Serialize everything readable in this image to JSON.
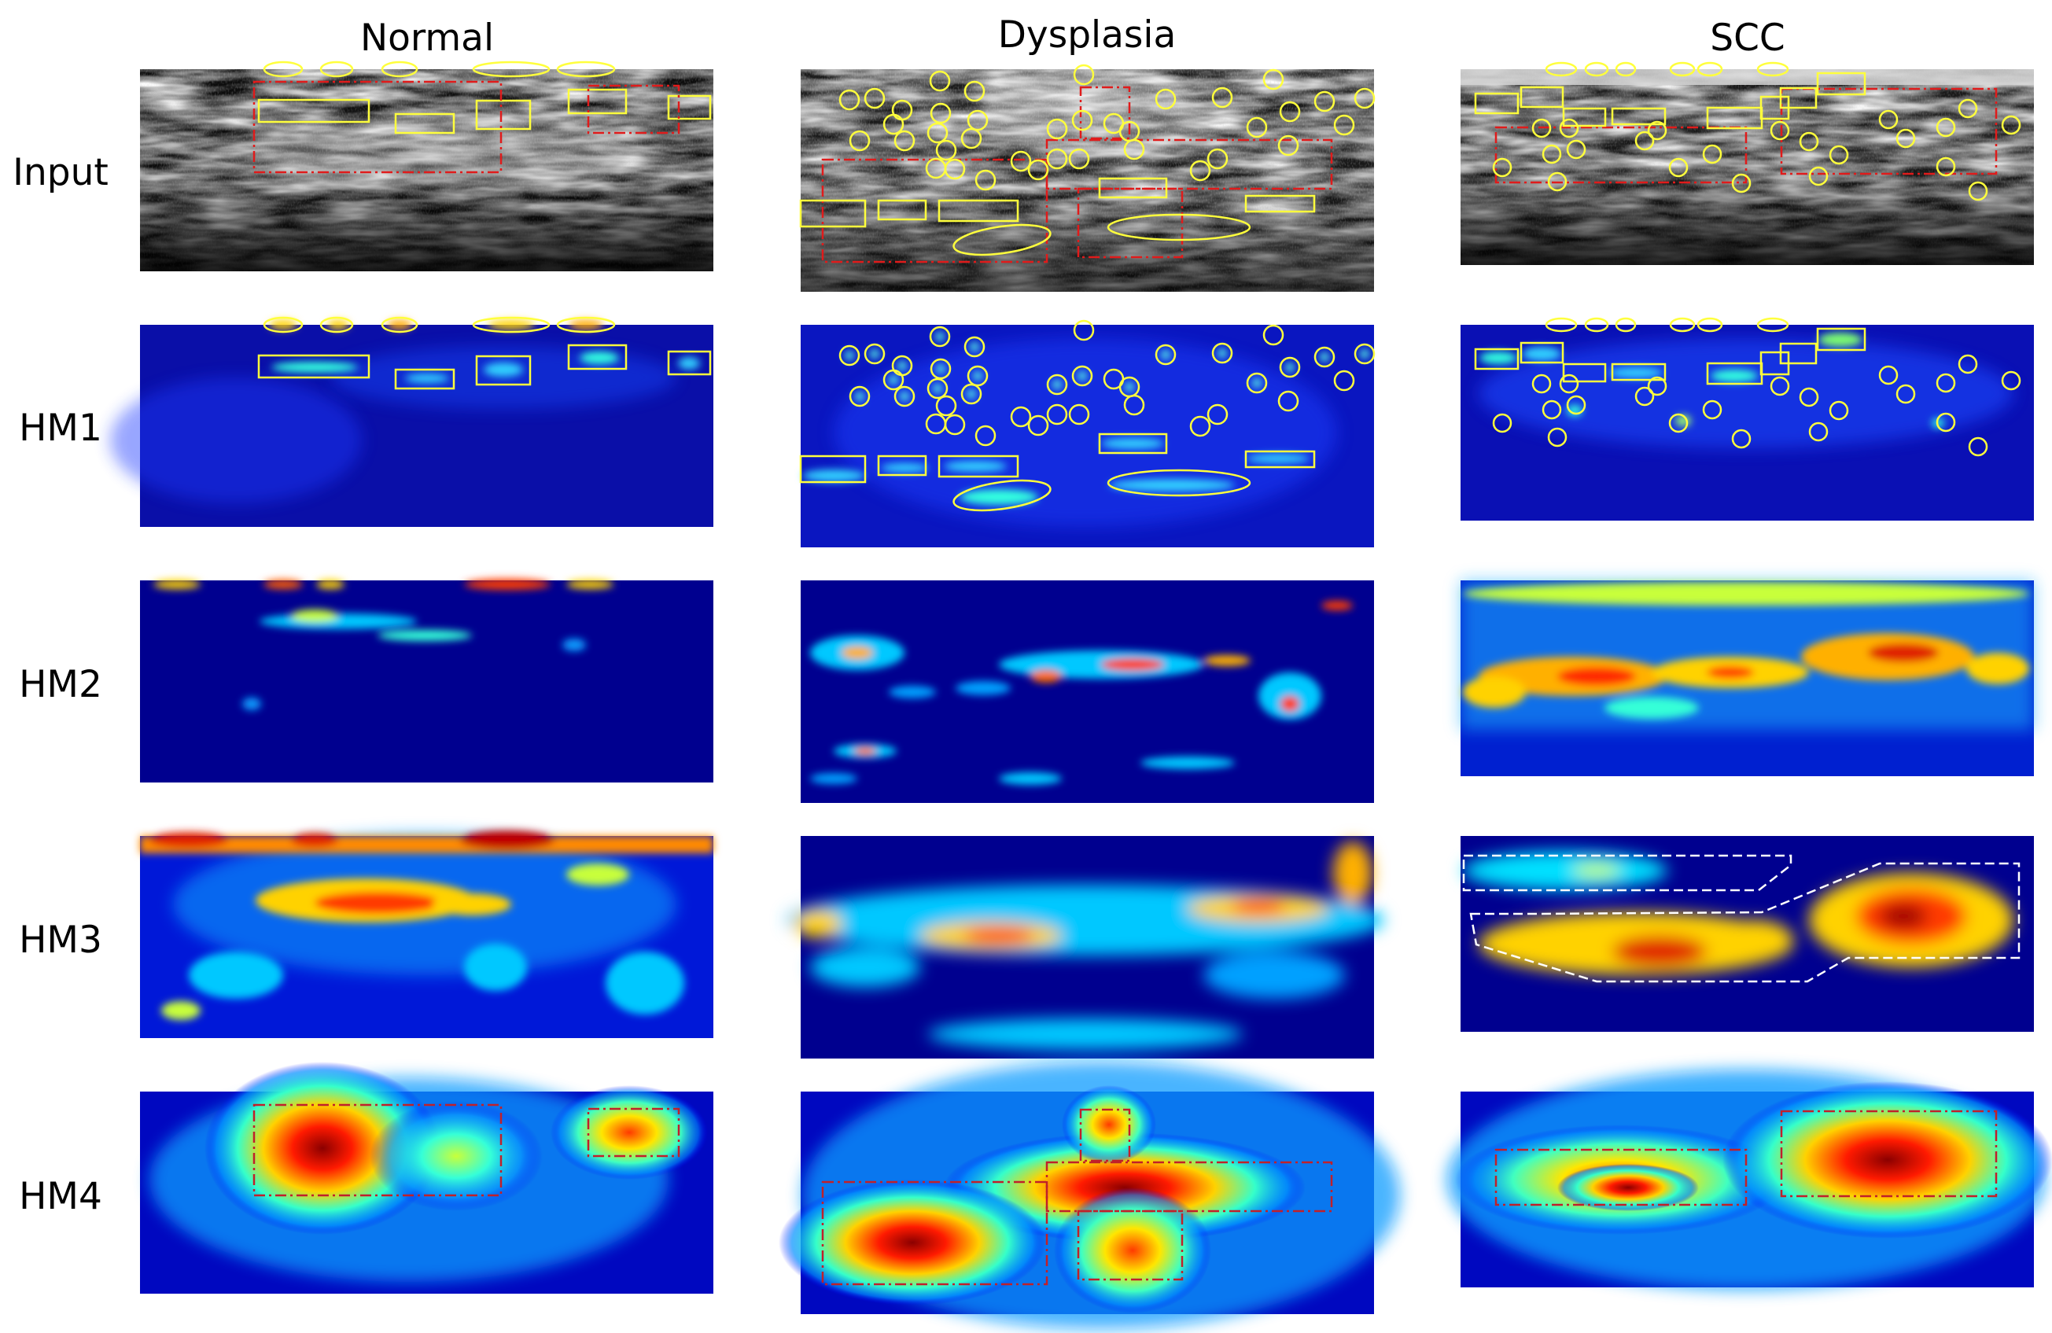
{
  "columns": [
    "Normal",
    "Dysplasia",
    "SCC"
  ],
  "rows": [
    "Input",
    "HM1",
    "HM2",
    "HM3",
    "HM4"
  ],
  "colors": {
    "heatmap_low": "#00008f",
    "heatmap_mid": "#00ffff",
    "heatmap_high": "#ff0000",
    "annotation_yellow": "#ffff3c",
    "annotation_red": "#e01b1b",
    "annotation_white": "#ffffff"
  },
  "panel_types": {
    "Input": "grayscale-oct",
    "HM1": "jet-heatmap",
    "HM2": "jet-heatmap",
    "HM3": "jet-heatmap",
    "HM4": "jet-heatmap"
  }
}
